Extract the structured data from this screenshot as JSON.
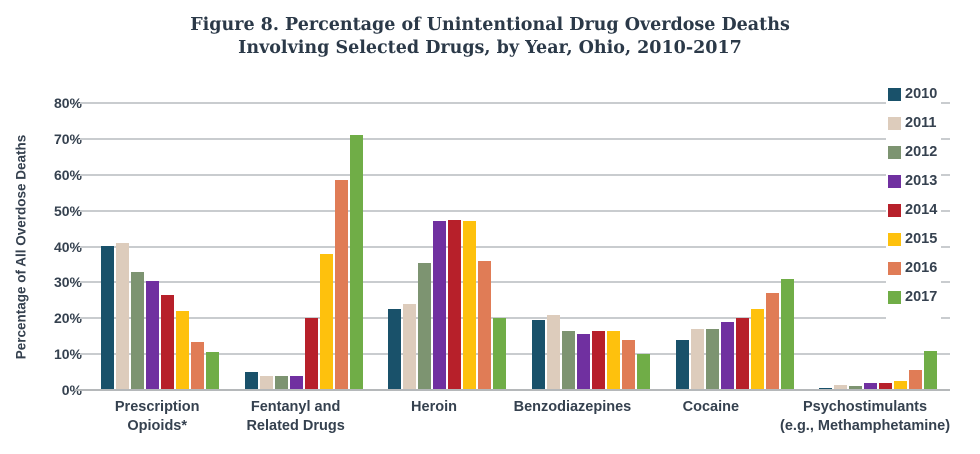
{
  "title": {
    "line1": "Figure 8. Percentage of Unintentional Drug Overdose Deaths",
    "line2": "Involving Selected Drugs, by Year, Ohio, 2010-2017"
  },
  "y_axis": {
    "label": "Percentage of All Overdose Deaths",
    "tick_labels": [
      "80%",
      "70%",
      "60%",
      "50%",
      "40%",
      "30%",
      "20%",
      "10%",
      "0%"
    ]
  },
  "colors": {
    "gridline": "#c9cccf",
    "baseline": "#b5b8ba",
    "text": "#35414f",
    "title": "#2b3948"
  },
  "chart_data": {
    "type": "bar",
    "title": "Figure 8. Percentage of Unintentional Drug Overdose Deaths Involving Selected Drugs, by Year, Ohio, 2010-2017",
    "xlabel": "",
    "ylabel": "Percentage of All Overdose Deaths",
    "ylim": [
      0,
      80
    ],
    "ytick_step": 10,
    "grid": true,
    "legend_position": "right",
    "categories": [
      "Prescription Opioids*",
      "Fentanyl and Related Drugs",
      "Heroin",
      "Benzodiazepines",
      "Cocaine",
      "Psychostimulants (e.g., Methamphetamine)"
    ],
    "category_label_lines": [
      [
        "Prescription",
        "Opioids*"
      ],
      [
        "Fentanyl and",
        "Related Drugs"
      ],
      [
        "Heroin"
      ],
      [
        "Benzodiazepines"
      ],
      [
        "Cocaine"
      ],
      [
        "Psychostimulants",
        "(e.g., Methamphetamine)"
      ]
    ],
    "series": [
      {
        "name": "2010",
        "color": "#19516a",
        "values": [
          40,
          5,
          22.5,
          19.5,
          14,
          0.5
        ]
      },
      {
        "name": "2011",
        "color": "#ddccbc",
        "values": [
          41,
          4,
          24,
          21,
          17,
          1.5
        ]
      },
      {
        "name": "2012",
        "color": "#7d9471",
        "values": [
          33,
          4,
          35.5,
          16.5,
          17,
          1
        ]
      },
      {
        "name": "2013",
        "color": "#7030a0",
        "values": [
          30.5,
          4,
          47,
          15.5,
          19,
          2
        ]
      },
      {
        "name": "2014",
        "color": "#b7202a",
        "values": [
          26.5,
          20,
          47.5,
          16.5,
          20,
          2
        ]
      },
      {
        "name": "2015",
        "color": "#fec10d",
        "values": [
          22,
          38,
          47,
          16.5,
          22.5,
          2.5
        ]
      },
      {
        "name": "2016",
        "color": "#e07c56",
        "values": [
          13.5,
          58.5,
          36,
          14,
          27,
          5.5
        ]
      },
      {
        "name": "2017",
        "color": "#70ad47",
        "values": [
          10.5,
          71,
          20,
          10,
          31,
          11
        ]
      }
    ]
  }
}
